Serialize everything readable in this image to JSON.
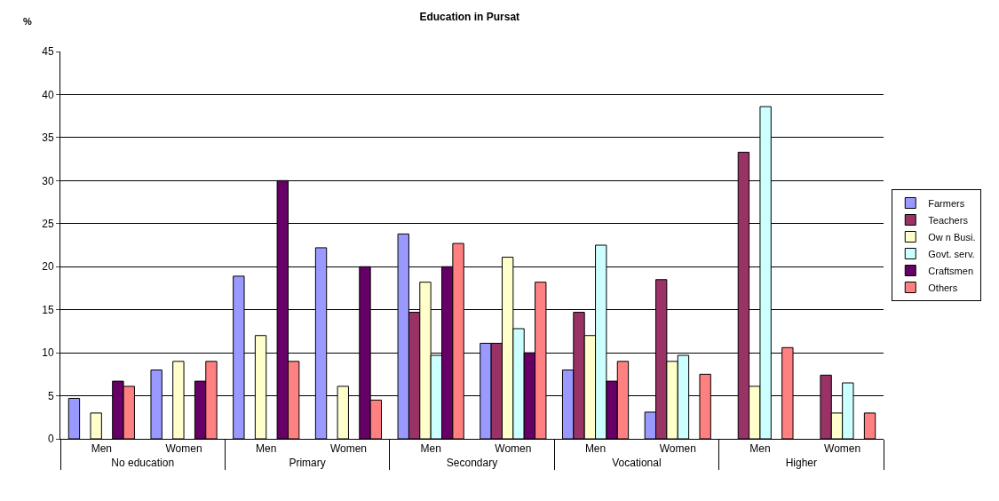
{
  "chart_data": {
    "type": "bar",
    "title": "Education in Pursat",
    "ylabel": "%",
    "categories": [
      "Men",
      "Women",
      "Men",
      "Women",
      "Men",
      "Women",
      "Men",
      "Women",
      "Men",
      "Women"
    ],
    "annotations": [
      "No education",
      "Primary",
      "Secondary",
      "Vocational",
      "Higher"
    ],
    "series": [
      {
        "name": "Farmers",
        "color": "#9999ff",
        "values": [
          4.7,
          8,
          18.9,
          22.2,
          23.8,
          11.1,
          8,
          3.1,
          null,
          null
        ]
      },
      {
        "name": "Teachers",
        "color": "#993366",
        "values": [
          null,
          null,
          null,
          null,
          14.7,
          11.1,
          14.7,
          18.5,
          33.3,
          7.4
        ]
      },
      {
        "name": "Ow n Busi.",
        "color": "#ffffcc",
        "values": [
          3,
          9,
          12,
          6.1,
          18.2,
          21.1,
          12,
          9,
          6.1,
          3
        ]
      },
      {
        "name": "Govt. serv.",
        "color": "#ccffff",
        "values": [
          null,
          null,
          null,
          null,
          9.7,
          12.8,
          22.5,
          9.7,
          38.6,
          6.5
        ]
      },
      {
        "name": "Craftsmen",
        "color": "#660066",
        "values": [
          6.7,
          6.7,
          30,
          20,
          20,
          10,
          6.7,
          null,
          null,
          null
        ]
      },
      {
        "name": "Others",
        "color": "#ff8080",
        "values": [
          6.1,
          9,
          9,
          4.5,
          22.7,
          18.2,
          9,
          7.5,
          10.6,
          3
        ]
      }
    ],
    "ylim": [
      0,
      45
    ],
    "yticks": [
      0,
      5,
      10,
      15,
      20,
      25,
      30,
      35,
      40,
      45
    ],
    "grid": "y",
    "legend": "right"
  }
}
